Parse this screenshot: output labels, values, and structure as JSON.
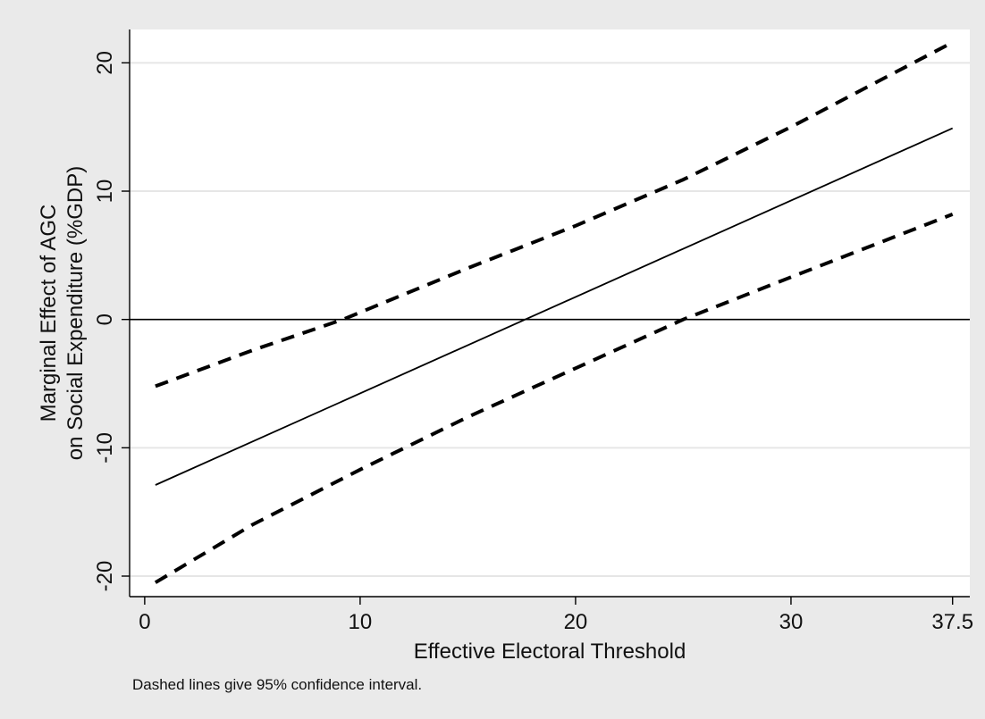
{
  "chart_data": {
    "type": "line",
    "xlabel": "Effective Electoral Threshold",
    "ylabel_lines": [
      "Marginal Effect of AGC",
      "on Social Expenditure (%GDP)"
    ],
    "x_ticks": [
      0,
      10,
      20,
      30,
      37.5
    ],
    "x_tick_labels": [
      "0",
      "10",
      "20",
      "30",
      "37.5"
    ],
    "y_ticks": [
      -20,
      -10,
      0,
      10,
      20
    ],
    "y_tick_labels": [
      "-20",
      "-10",
      "0",
      "10",
      "20"
    ],
    "xlim": [
      -0.7,
      38.3
    ],
    "ylim": [
      -21.6,
      22.6
    ],
    "reference_line": {
      "y": 0
    },
    "grid": "horizontal",
    "x": [
      0.5,
      37.5
    ],
    "series": [
      {
        "role": "estimate",
        "style": "solid",
        "x": [
          0.5,
          37.5
        ],
        "values": [
          -12.9,
          14.9
        ]
      },
      {
        "role": "upper-ci",
        "style": "dashed",
        "x": [
          0.5,
          5,
          9.2,
          15,
          20,
          25,
          30,
          37.5
        ],
        "values": [
          -5.2,
          -2.4,
          0.0,
          4.0,
          7.3,
          10.9,
          15.0,
          21.6
        ]
      },
      {
        "role": "lower-ci",
        "style": "dashed",
        "x": [
          0.5,
          5,
          10,
          15,
          20,
          25,
          30,
          37.5
        ],
        "values": [
          -20.5,
          -16.0,
          -11.7,
          -7.6,
          -3.8,
          0.0,
          3.3,
          8.2
        ]
      }
    ],
    "colors": {
      "line": "#000000",
      "background": "#eaeaea",
      "plot": "#ffffff",
      "grid": "#e6e6e6"
    }
  },
  "note": "Dashed lines give 95% confidence interval."
}
